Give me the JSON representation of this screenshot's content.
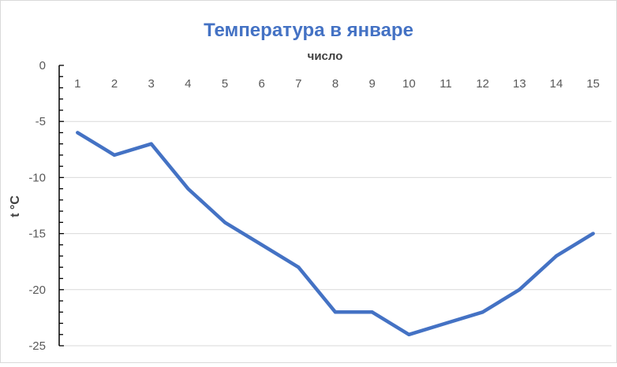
{
  "chart_data": {
    "type": "line",
    "title": "Температура в январе",
    "xlabel": "число",
    "ylabel": "t °C",
    "categories": [
      "1",
      "2",
      "3",
      "4",
      "5",
      "6",
      "7",
      "8",
      "9",
      "10",
      "11",
      "12",
      "13",
      "14",
      "15"
    ],
    "series": [
      {
        "values": [
          -6,
          -8,
          -7,
          -11,
          -14,
          -16,
          -18,
          -22,
          -22,
          -24,
          -23,
          -22,
          -20,
          -17,
          -15
        ]
      }
    ],
    "ylim": [
      -25,
      0
    ],
    "yticks": [
      0,
      -5,
      -10,
      -15,
      -20,
      -25
    ],
    "grid": true,
    "x_axis_position": "top",
    "legend": "none",
    "colors": {
      "series": "#4472C4",
      "title": "#4472C4",
      "grid": "#d9d9d9",
      "text": "#595959",
      "axis": "#000000"
    }
  }
}
